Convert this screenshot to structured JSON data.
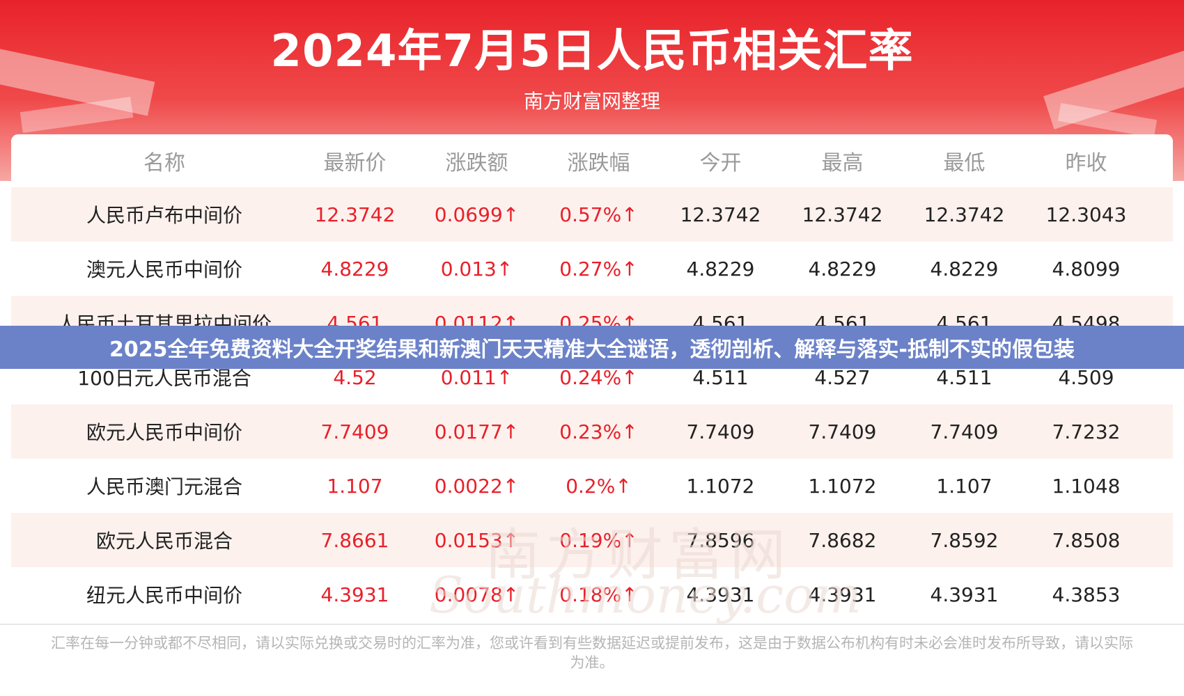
{
  "header": {
    "title": "2024年7月5日人民币相关汇率",
    "subtitle": "南方财富网整理"
  },
  "table": {
    "columns": [
      "名称",
      "最新价",
      "涨跌额",
      "涨跌幅",
      "今开",
      "最高",
      "最低",
      "昨收"
    ],
    "rows": [
      [
        "人民币卢布中间价",
        "12.3742",
        "0.0699↑",
        "0.57%↑",
        "12.3742",
        "12.3742",
        "12.3742",
        "12.3043"
      ],
      [
        "澳元人民币中间价",
        "4.8229",
        "0.013↑",
        "0.27%↑",
        "4.8229",
        "4.8229",
        "4.8229",
        "4.8099"
      ],
      [
        "人民币土耳其里拉中间价",
        "4.561",
        "0.0112↑",
        "0.25%↑",
        "4.561",
        "4.561",
        "4.561",
        "4.5498"
      ],
      [
        "100日元人民币混合",
        "4.52",
        "0.011↑",
        "0.24%↑",
        "4.511",
        "4.527",
        "4.511",
        "4.509"
      ],
      [
        "欧元人民币中间价",
        "7.7409",
        "0.0177↑",
        "0.23%↑",
        "7.7409",
        "7.7409",
        "7.7409",
        "7.7232"
      ],
      [
        "人民币澳门元混合",
        "1.107",
        "0.0022↑",
        "0.2%↑",
        "1.1072",
        "1.1072",
        "1.107",
        "1.1048"
      ],
      [
        "欧元人民币混合",
        "7.8661",
        "0.0153↑",
        "0.19%↑",
        "7.8596",
        "7.8682",
        "7.8592",
        "7.8508"
      ],
      [
        "纽元人民币中间价",
        "4.3931",
        "0.0078↑",
        "0.18%↑",
        "4.3931",
        "4.3931",
        "4.3931",
        "4.3853"
      ]
    ]
  },
  "watermark": {
    "cn": "南方财富网",
    "en": "Southmoney.com"
  },
  "footnote": "汇率在每一分钟或都不尽相同，请以实际兑换或交易时的汇率为准，您或许看到有些数据延迟或提前发布，这是由于数据公布机构有时未必会准时发布所导致，请以实际为准。",
  "banner": "2025全年免费资料大全开奖结果和新澳门天天精准大全谜语，透彻剖析、解释与落实-抵制不实的假包装",
  "colors": {
    "header_red": "#e8232a",
    "up_red": "#e8202a",
    "banner_blue": "#6b82c9",
    "row_alt": "#fdf1ed"
  }
}
